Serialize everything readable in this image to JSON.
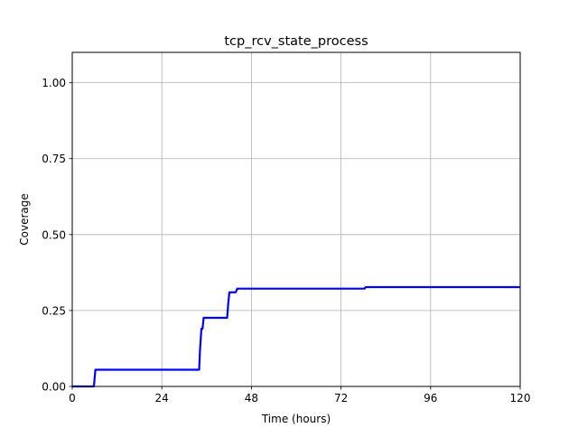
{
  "chart_data": {
    "type": "line",
    "title": "tcp_rcv_state_process",
    "xlabel": "Time (hours)",
    "ylabel": "Coverage",
    "xlim": [
      0,
      120
    ],
    "ylim": [
      0,
      1.1
    ],
    "x_ticks": [
      0,
      24,
      48,
      72,
      96,
      120
    ],
    "x_tick_labels": [
      "0",
      "24",
      "48",
      "72",
      "96",
      "120"
    ],
    "y_ticks": [
      0,
      0.25,
      0.5,
      0.75,
      1.0
    ],
    "y_tick_labels": [
      "0.00",
      "0.25",
      "0.50",
      "0.75",
      "1.00"
    ],
    "grid": true,
    "series": [
      {
        "name": "coverage",
        "color": "#0000ff",
        "x": [
          0,
          5.8,
          6.2,
          34,
          34.2,
          34.6,
          34.9,
          35.2,
          41.5,
          41.8,
          42.1,
          43.8,
          44.2,
          78.3,
          78.6,
          120
        ],
        "y": [
          0,
          0,
          0.055,
          0.055,
          0.115,
          0.19,
          0.19,
          0.226,
          0.226,
          0.275,
          0.31,
          0.31,
          0.322,
          0.322,
          0.327,
          0.327
        ]
      }
    ]
  }
}
